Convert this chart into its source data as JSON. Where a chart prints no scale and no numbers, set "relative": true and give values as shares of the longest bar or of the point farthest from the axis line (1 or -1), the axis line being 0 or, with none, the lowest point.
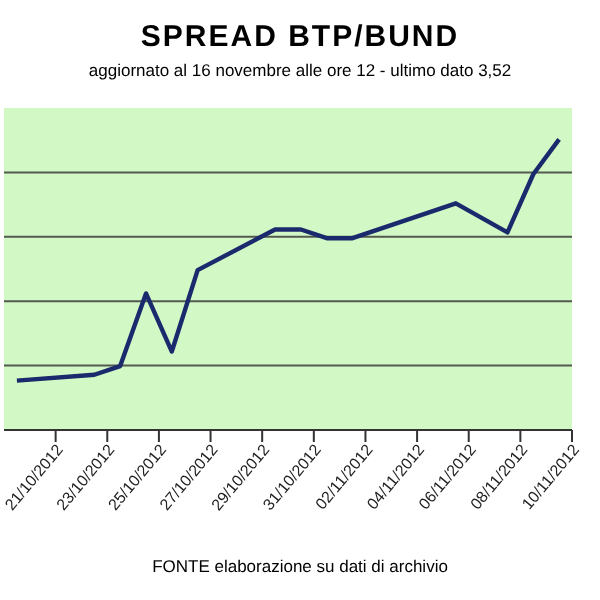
{
  "chart_data": {
    "type": "line",
    "title": "SPREAD  BTP/BUND",
    "subtitle": "aggiornato al 16 novembre alle ore 12 - ultimo dato 3,52",
    "annotations": [
      "FONTE elaborazione su dati di archivio"
    ],
    "relative": true,
    "grid": "y",
    "marker": "none",
    "line_style": "solid",
    "x": [
      "2012-10-19T12:00",
      "2012-10-22T12:00",
      "2012-10-23T12:00",
      "2012-10-24T12:00",
      "2012-10-25T12:00",
      "2012-10-26T12:00",
      "2012-10-29T12:00",
      "2012-10-30T12:00",
      "2012-10-31T12:00",
      "2012-11-01T12:00",
      "2012-11-05T12:00",
      "2012-11-07T12:00",
      "2012-11-08T12:00",
      "2012-11-09T12:00"
    ],
    "series": [
      {
        "color": "#1a2a6c",
        "values": [
          0.17,
          0.19,
          0.22,
          0.47,
          0.27,
          0.55,
          0.69,
          0.69,
          0.66,
          0.66,
          0.78,
          0.68,
          0.88,
          1
        ]
      }
    ],
    "xlim": [
      "2012-10-19",
      "2012-11-10"
    ],
    "xticks": [
      {
        "value": "2012-10-21",
        "label": "21/10/2012"
      },
      {
        "value": "2012-10-23",
        "label": "23/10/2012"
      },
      {
        "value": "2012-10-25",
        "label": "25/10/2012"
      },
      {
        "value": "2012-10-27",
        "label": "27/10/2012"
      },
      {
        "value": "2012-10-29",
        "label": "29/10/2012"
      },
      {
        "value": "2012-10-31",
        "label": "31/10/2012"
      },
      {
        "value": "2012-11-02",
        "label": "02/11/2012"
      },
      {
        "value": "2012-11-04",
        "label": "04/11/2012"
      },
      {
        "value": "2012-11-06",
        "label": "06/11/2012"
      },
      {
        "value": "2012-11-08",
        "label": "08/11/2012"
      },
      {
        "value": "2012-11-10",
        "label": "10/11/2012"
      }
    ]
  }
}
